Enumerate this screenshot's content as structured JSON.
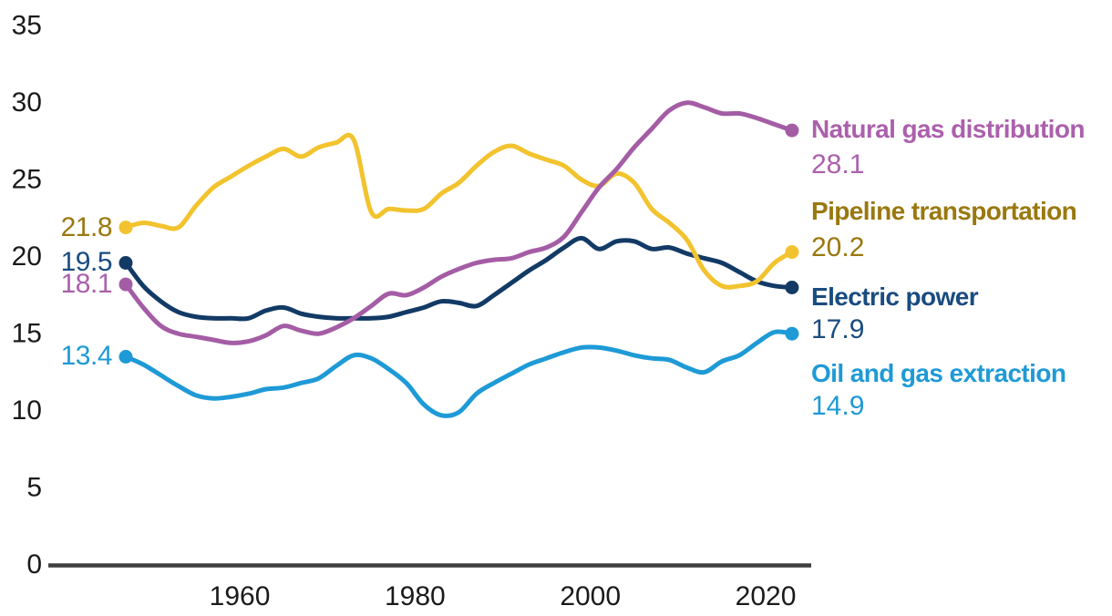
{
  "chart_data": {
    "type": "line",
    "grid": false,
    "legend_position": "right",
    "axis_color": "#3f3f3f",
    "tick_text_color": "#1a1a1a",
    "xlim": [
      1947,
      2023
    ],
    "ylim": [
      0,
      35
    ],
    "y_ticks": [
      0,
      5,
      10,
      15,
      20,
      25,
      30,
      35
    ],
    "y_tick_labels": [
      "0",
      "5",
      "10",
      "15",
      "20",
      "25",
      "30",
      "35"
    ],
    "x_tick_years": [
      1960,
      1980,
      2000,
      2020
    ],
    "x_tick_labels": [
      "1960",
      "1980",
      "2000",
      "2020"
    ],
    "years": [
      1947,
      1949,
      1951,
      1953,
      1955,
      1957,
      1959,
      1961,
      1963,
      1965,
      1967,
      1969,
      1971,
      1973,
      1975,
      1977,
      1979,
      1981,
      1983,
      1985,
      1987,
      1989,
      1991,
      1993,
      1995,
      1997,
      1999,
      2001,
      2003,
      2005,
      2007,
      2009,
      2011,
      2013,
      2015,
      2017,
      2019,
      2021,
      2023
    ],
    "series": [
      {
        "name": "Natural gas distribution",
        "line_color": "#a45da5",
        "text_color": "#ab60ac",
        "start_label": "18.1",
        "end_label": "28.1",
        "values": [
          18.1,
          16.6,
          15.4,
          14.9,
          14.7,
          14.5,
          14.3,
          14.4,
          14.8,
          15.4,
          15.1,
          14.9,
          15.3,
          15.9,
          16.7,
          17.5,
          17.4,
          17.9,
          18.6,
          19.1,
          19.5,
          19.7,
          19.8,
          20.2,
          20.5,
          21.2,
          22.8,
          24.4,
          25.6,
          27.0,
          28.2,
          29.4,
          29.9,
          29.6,
          29.2,
          29.2,
          28.9,
          28.5,
          28.1
        ]
      },
      {
        "name": "Pipeline transportation",
        "line_color": "#f2c32e",
        "text_color": "#9a780e",
        "start_label": "21.8",
        "end_label": "20.2",
        "values": [
          21.8,
          22.1,
          21.9,
          21.8,
          23.2,
          24.4,
          25.1,
          25.8,
          26.4,
          26.9,
          26.4,
          27.0,
          27.3,
          27.5,
          22.8,
          23.0,
          22.9,
          23.0,
          24.0,
          24.7,
          25.8,
          26.7,
          27.1,
          26.6,
          26.2,
          25.8,
          24.9,
          24.5,
          25.3,
          24.7,
          23.0,
          22.1,
          21.0,
          19.0,
          18.0,
          18.0,
          18.3,
          19.5,
          20.2
        ]
      },
      {
        "name": "Electric power",
        "line_color": "#123a65",
        "text_color": "#1a4c80",
        "start_label": "19.5",
        "end_label": "17.9",
        "values": [
          19.5,
          18.0,
          17.0,
          16.3,
          16.0,
          15.9,
          15.9,
          15.9,
          16.4,
          16.6,
          16.2,
          16.0,
          15.9,
          15.9,
          15.9,
          16.0,
          16.3,
          16.6,
          17.0,
          16.9,
          16.7,
          17.4,
          18.2,
          19.0,
          19.7,
          20.5,
          21.1,
          20.4,
          20.9,
          20.9,
          20.4,
          20.5,
          20.1,
          19.8,
          19.5,
          18.9,
          18.3,
          18.0,
          17.9
        ]
      },
      {
        "name": "Oil and gas extraction",
        "line_color": "#1e9ad6",
        "text_color": "#1e9ad6",
        "start_label": "13.4",
        "end_label": "14.9",
        "values": [
          13.4,
          12.9,
          12.2,
          11.5,
          10.9,
          10.7,
          10.8,
          11.0,
          11.3,
          11.4,
          11.7,
          12.0,
          12.8,
          13.5,
          13.3,
          12.6,
          11.7,
          10.3,
          9.6,
          9.8,
          11.0,
          11.7,
          12.3,
          12.9,
          13.3,
          13.7,
          14.0,
          14.0,
          13.8,
          13.5,
          13.3,
          13.2,
          12.7,
          12.4,
          13.1,
          13.5,
          14.3,
          15.0,
          14.9
        ]
      }
    ]
  }
}
